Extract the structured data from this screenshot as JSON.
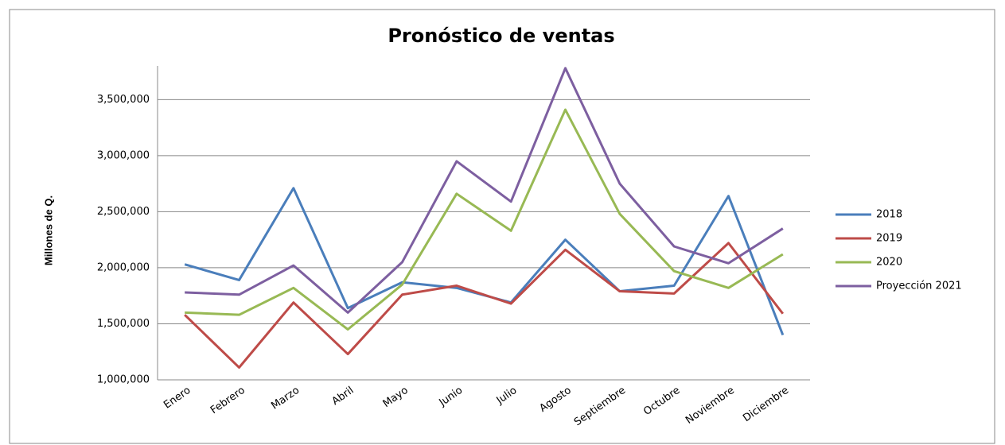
{
  "chart_data": {
    "type": "line",
    "title": "Pronóstico de ventas",
    "y_label": "Millones de Q.",
    "categories": [
      "Enero",
      "Febrero",
      "Marzo",
      "Abril",
      "Mayo",
      "Junio",
      "Julio",
      "Agosto",
      "Septiembre",
      "Octubre",
      "Noviembre",
      "Diciembre"
    ],
    "series": [
      {
        "name": "2018",
        "color": "#4a7ebb",
        "values": [
          2030000,
          1890000,
          2710000,
          1640000,
          1870000,
          1820000,
          1690000,
          2250000,
          1790000,
          1840000,
          2640000,
          1400000
        ]
      },
      {
        "name": "2019",
        "color": "#be4b48",
        "values": [
          1580000,
          1110000,
          1690000,
          1230000,
          1760000,
          1840000,
          1680000,
          2160000,
          1790000,
          1770000,
          2220000,
          1590000
        ]
      },
      {
        "name": "2020",
        "color": "#98b954",
        "values": [
          1600000,
          1580000,
          1820000,
          1450000,
          1850000,
          2660000,
          2330000,
          3410000,
          2480000,
          1970000,
          1820000,
          2120000
        ]
      },
      {
        "name": "Proyección 2021",
        "color": "#7d5fa0",
        "values": [
          1780000,
          1760000,
          2020000,
          1600000,
          2050000,
          2950000,
          2590000,
          3780000,
          2750000,
          2190000,
          2040000,
          2350000
        ]
      }
    ],
    "ylim": [
      1000000,
      3800000
    ],
    "yticks": [
      {
        "value": 1000000,
        "label": "1,000,000"
      },
      {
        "value": 1500000,
        "label": "1,500,000"
      },
      {
        "value": 2000000,
        "label": "2,000,000"
      },
      {
        "value": 2500000,
        "label": "2,500,000"
      },
      {
        "value": 3000000,
        "label": "3,000,000"
      },
      {
        "value": 3500000,
        "label": "3,500,000"
      }
    ],
    "grid": true,
    "legend": "right"
  }
}
